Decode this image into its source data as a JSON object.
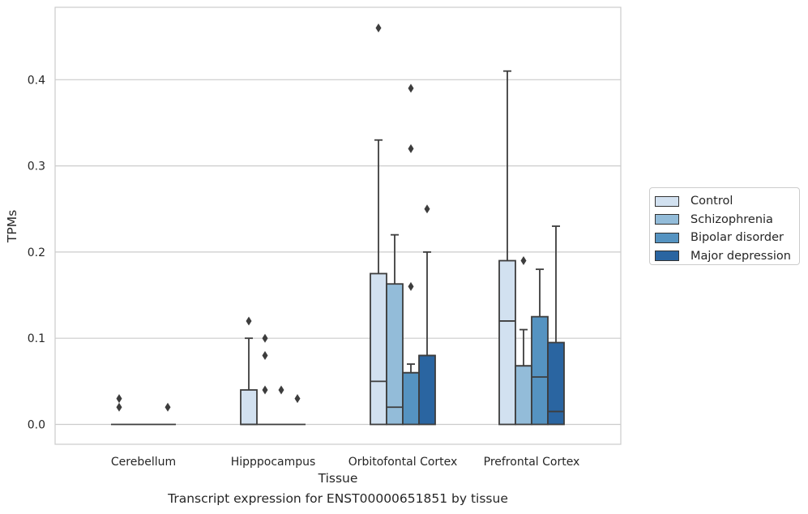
{
  "chart_data": {
    "type": "box",
    "title": "",
    "xlabel": "Tissue",
    "ylabel": "TPMs",
    "ylim": [
      -0.022,
      0.485
    ],
    "yticks": [
      0.0,
      0.1,
      0.2,
      0.3,
      0.4
    ],
    "ytick_labels": [
      "0.0",
      "0.1",
      "0.2",
      "0.3",
      "0.4"
    ],
    "categories": [
      "Cerebellum",
      "Hipppocampus",
      "Orbitofontal Cortex",
      "Prefrontal Cortex"
    ],
    "grid": "horizontal",
    "legend_position": "right",
    "series": [
      {
        "name": "Control",
        "color": "#d2e1f0",
        "boxes": [
          {
            "q1": 0,
            "median": 0,
            "q3": 0,
            "whisker_low": 0,
            "whisker_high": 0,
            "outliers": [
              0.02,
              0.03
            ]
          },
          {
            "q1": 0,
            "median": 0,
            "q3": 0.04,
            "whisker_low": 0,
            "whisker_high": 0.1,
            "outliers": [
              0.12
            ]
          },
          {
            "q1": 0,
            "median": 0.05,
            "q3": 0.175,
            "whisker_low": 0,
            "whisker_high": 0.33,
            "outliers": [
              0.46
            ]
          },
          {
            "q1": 0,
            "median": 0.12,
            "q3": 0.19,
            "whisker_low": 0,
            "whisker_high": 0.41,
            "outliers": []
          }
        ]
      },
      {
        "name": "Schizophrenia",
        "color": "#93bcd9",
        "boxes": [
          {
            "q1": 0,
            "median": 0,
            "q3": 0,
            "whisker_low": 0,
            "whisker_high": 0,
            "outliers": []
          },
          {
            "q1": 0,
            "median": 0,
            "q3": 0,
            "whisker_low": 0,
            "whisker_high": 0,
            "outliers": [
              0.04,
              0.08,
              0.1
            ]
          },
          {
            "q1": 0,
            "median": 0.02,
            "q3": 0.163,
            "whisker_low": 0,
            "whisker_high": 0.22,
            "outliers": []
          },
          {
            "q1": 0,
            "median": 0.068,
            "q3": 0.068,
            "whisker_low": 0,
            "whisker_high": 0.11,
            "outliers": [
              0.19
            ]
          }
        ]
      },
      {
        "name": "Bipolar disorder",
        "color": "#5593c1",
        "boxes": [
          {
            "q1": 0,
            "median": 0,
            "q3": 0,
            "whisker_low": 0,
            "whisker_high": 0,
            "outliers": []
          },
          {
            "q1": 0,
            "median": 0,
            "q3": 0,
            "whisker_low": 0,
            "whisker_high": 0,
            "outliers": [
              0.04
            ]
          },
          {
            "q1": 0,
            "median": 0.06,
            "q3": 0.06,
            "whisker_low": 0,
            "whisker_high": 0.07,
            "outliers": [
              0.16,
              0.32,
              0.39
            ]
          },
          {
            "q1": 0,
            "median": 0.055,
            "q3": 0.125,
            "whisker_low": 0,
            "whisker_high": 0.18,
            "outliers": []
          }
        ]
      },
      {
        "name": "Major depression",
        "color": "#2a65a1",
        "boxes": [
          {
            "q1": 0,
            "median": 0,
            "q3": 0,
            "whisker_low": 0,
            "whisker_high": 0,
            "outliers": [
              0.02
            ]
          },
          {
            "q1": 0,
            "median": 0,
            "q3": 0,
            "whisker_low": 0,
            "whisker_high": 0,
            "outliers": [
              0.03
            ]
          },
          {
            "q1": 0,
            "median": 0.08,
            "q3": 0.08,
            "whisker_low": 0,
            "whisker_high": 0.2,
            "outliers": [
              0.25
            ]
          },
          {
            "q1": 0,
            "median": 0.015,
            "q3": 0.095,
            "whisker_low": 0,
            "whisker_high": 0.23,
            "outliers": []
          }
        ]
      }
    ]
  },
  "caption": "Transcript expression for ENST00000651851 by tissue"
}
